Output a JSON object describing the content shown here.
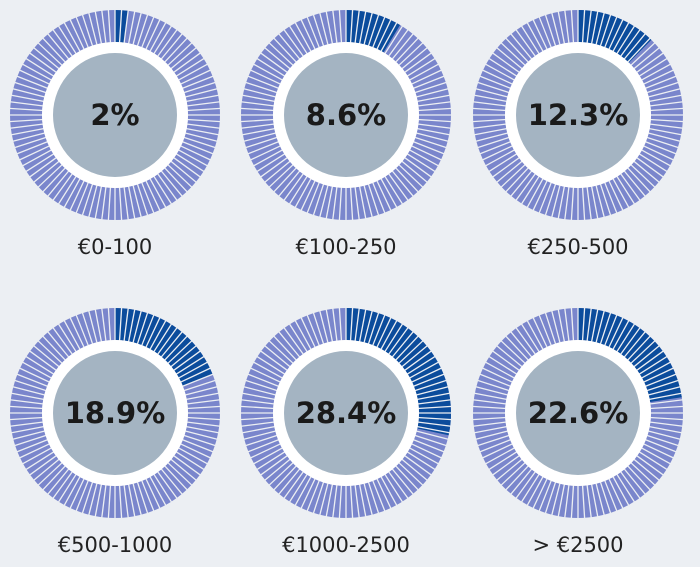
{
  "chart_data": {
    "type": "donut",
    "categories": [
      "€0-100",
      "€100-250",
      "€250-500",
      "€500-1000",
      "€1000-2500",
      "> €2500"
    ],
    "values": [
      2,
      8.6,
      12.3,
      18.9,
      28.4,
      22.6
    ],
    "value_labels": [
      "2%",
      "8.6%",
      "12.3%",
      "18.9%",
      "28.4%",
      "22.6%"
    ],
    "color": "#0b4c9c",
    "track_color": "#7a86cc"
  }
}
